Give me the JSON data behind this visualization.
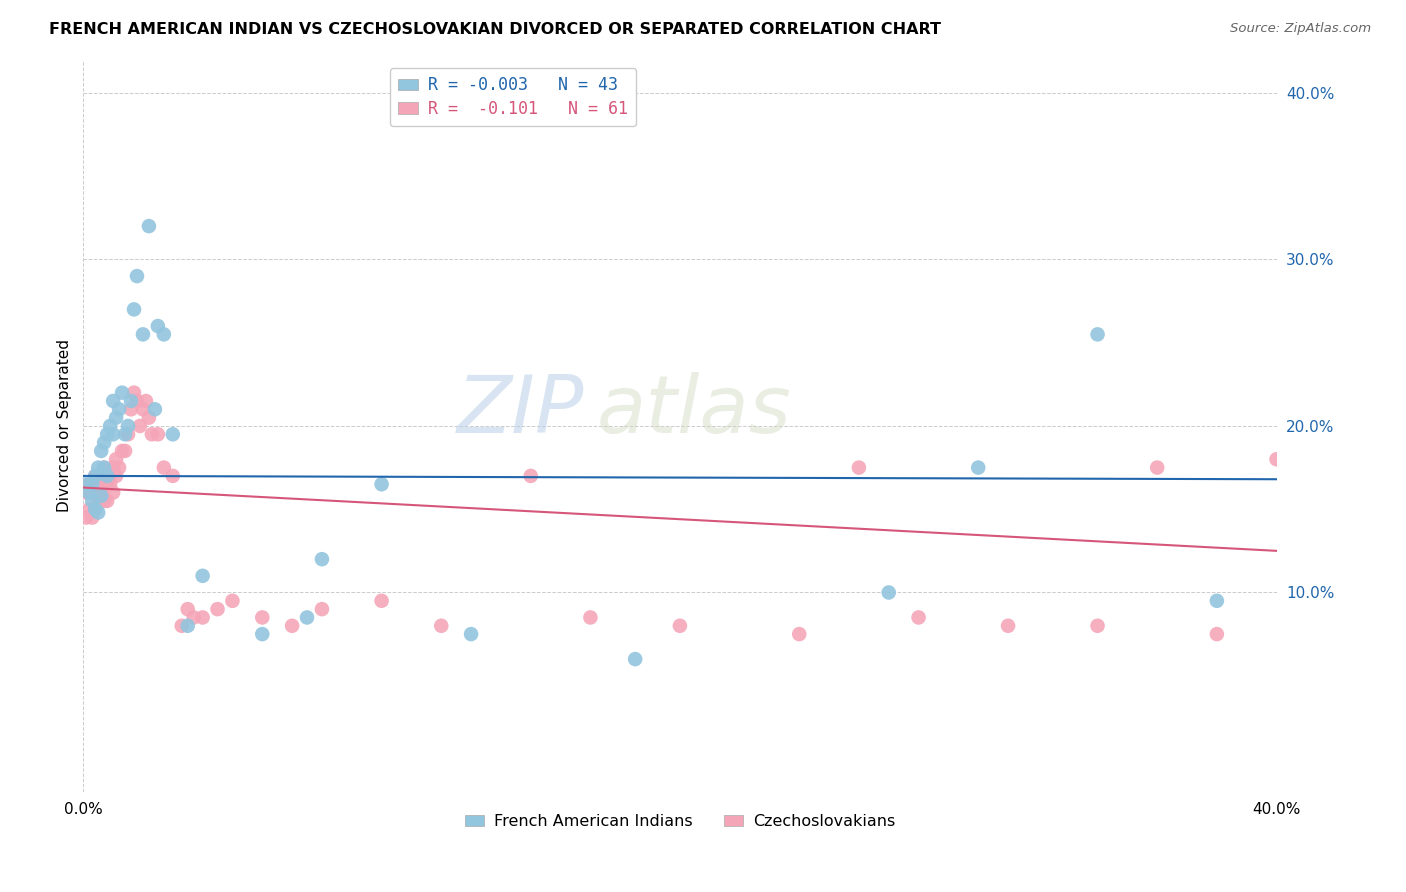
{
  "title": "FRENCH AMERICAN INDIAN VS CZECHOSLOVAKIAN DIVORCED OR SEPARATED CORRELATION CHART",
  "source": "Source: ZipAtlas.com",
  "ylabel": "Divorced or Separated",
  "xlim": [
    0.0,
    0.4
  ],
  "ylim": [
    -0.02,
    0.42
  ],
  "yticks": [
    0.1,
    0.2,
    0.3,
    0.4
  ],
  "ytick_labels": [
    "10.0%",
    "20.0%",
    "30.0%",
    "40.0%"
  ],
  "blue_R": "-0.003",
  "blue_N": "43",
  "pink_R": "-0.101",
  "pink_N": "61",
  "blue_color": "#92c5de",
  "pink_color": "#f4a6b8",
  "blue_line_color": "#2166ac",
  "pink_line_color": "#d6567a",
  "watermark_zip": "ZIP",
  "watermark_atlas": "atlas",
  "blue_scatter_x": [
    0.001,
    0.002,
    0.003,
    0.003,
    0.004,
    0.004,
    0.005,
    0.005,
    0.006,
    0.006,
    0.007,
    0.007,
    0.008,
    0.008,
    0.009,
    0.01,
    0.01,
    0.011,
    0.012,
    0.013,
    0.014,
    0.015,
    0.016,
    0.017,
    0.018,
    0.02,
    0.022,
    0.024,
    0.025,
    0.027,
    0.03,
    0.035,
    0.04,
    0.06,
    0.075,
    0.08,
    0.1,
    0.13,
    0.185,
    0.27,
    0.3,
    0.34,
    0.38
  ],
  "blue_scatter_y": [
    0.165,
    0.16,
    0.155,
    0.165,
    0.15,
    0.17,
    0.148,
    0.175,
    0.158,
    0.185,
    0.175,
    0.19,
    0.195,
    0.17,
    0.2,
    0.195,
    0.215,
    0.205,
    0.21,
    0.22,
    0.195,
    0.2,
    0.215,
    0.27,
    0.29,
    0.255,
    0.32,
    0.21,
    0.26,
    0.255,
    0.195,
    0.08,
    0.11,
    0.075,
    0.085,
    0.12,
    0.165,
    0.075,
    0.06,
    0.1,
    0.175,
    0.255,
    0.095
  ],
  "pink_scatter_x": [
    0.001,
    0.001,
    0.002,
    0.002,
    0.003,
    0.003,
    0.004,
    0.004,
    0.005,
    0.005,
    0.006,
    0.006,
    0.006,
    0.007,
    0.007,
    0.007,
    0.008,
    0.008,
    0.009,
    0.009,
    0.01,
    0.01,
    0.011,
    0.011,
    0.012,
    0.013,
    0.014,
    0.015,
    0.016,
    0.017,
    0.018,
    0.019,
    0.02,
    0.021,
    0.022,
    0.023,
    0.025,
    0.027,
    0.03,
    0.033,
    0.035,
    0.037,
    0.04,
    0.045,
    0.05,
    0.06,
    0.07,
    0.08,
    0.1,
    0.12,
    0.15,
    0.17,
    0.2,
    0.24,
    0.26,
    0.28,
    0.31,
    0.34,
    0.36,
    0.38,
    0.4
  ],
  "pink_scatter_y": [
    0.145,
    0.16,
    0.15,
    0.165,
    0.145,
    0.165,
    0.15,
    0.17,
    0.158,
    0.155,
    0.16,
    0.155,
    0.17,
    0.155,
    0.165,
    0.175,
    0.165,
    0.155,
    0.165,
    0.17,
    0.175,
    0.16,
    0.17,
    0.18,
    0.175,
    0.185,
    0.185,
    0.195,
    0.21,
    0.22,
    0.215,
    0.2,
    0.21,
    0.215,
    0.205,
    0.195,
    0.195,
    0.175,
    0.17,
    0.08,
    0.09,
    0.085,
    0.085,
    0.09,
    0.095,
    0.085,
    0.08,
    0.09,
    0.095,
    0.08,
    0.17,
    0.085,
    0.08,
    0.075,
    0.175,
    0.085,
    0.08,
    0.08,
    0.175,
    0.075,
    0.18
  ],
  "blue_line_y0": 0.17,
  "blue_line_y1": 0.168,
  "pink_line_y0": 0.163,
  "pink_line_y1": 0.125
}
